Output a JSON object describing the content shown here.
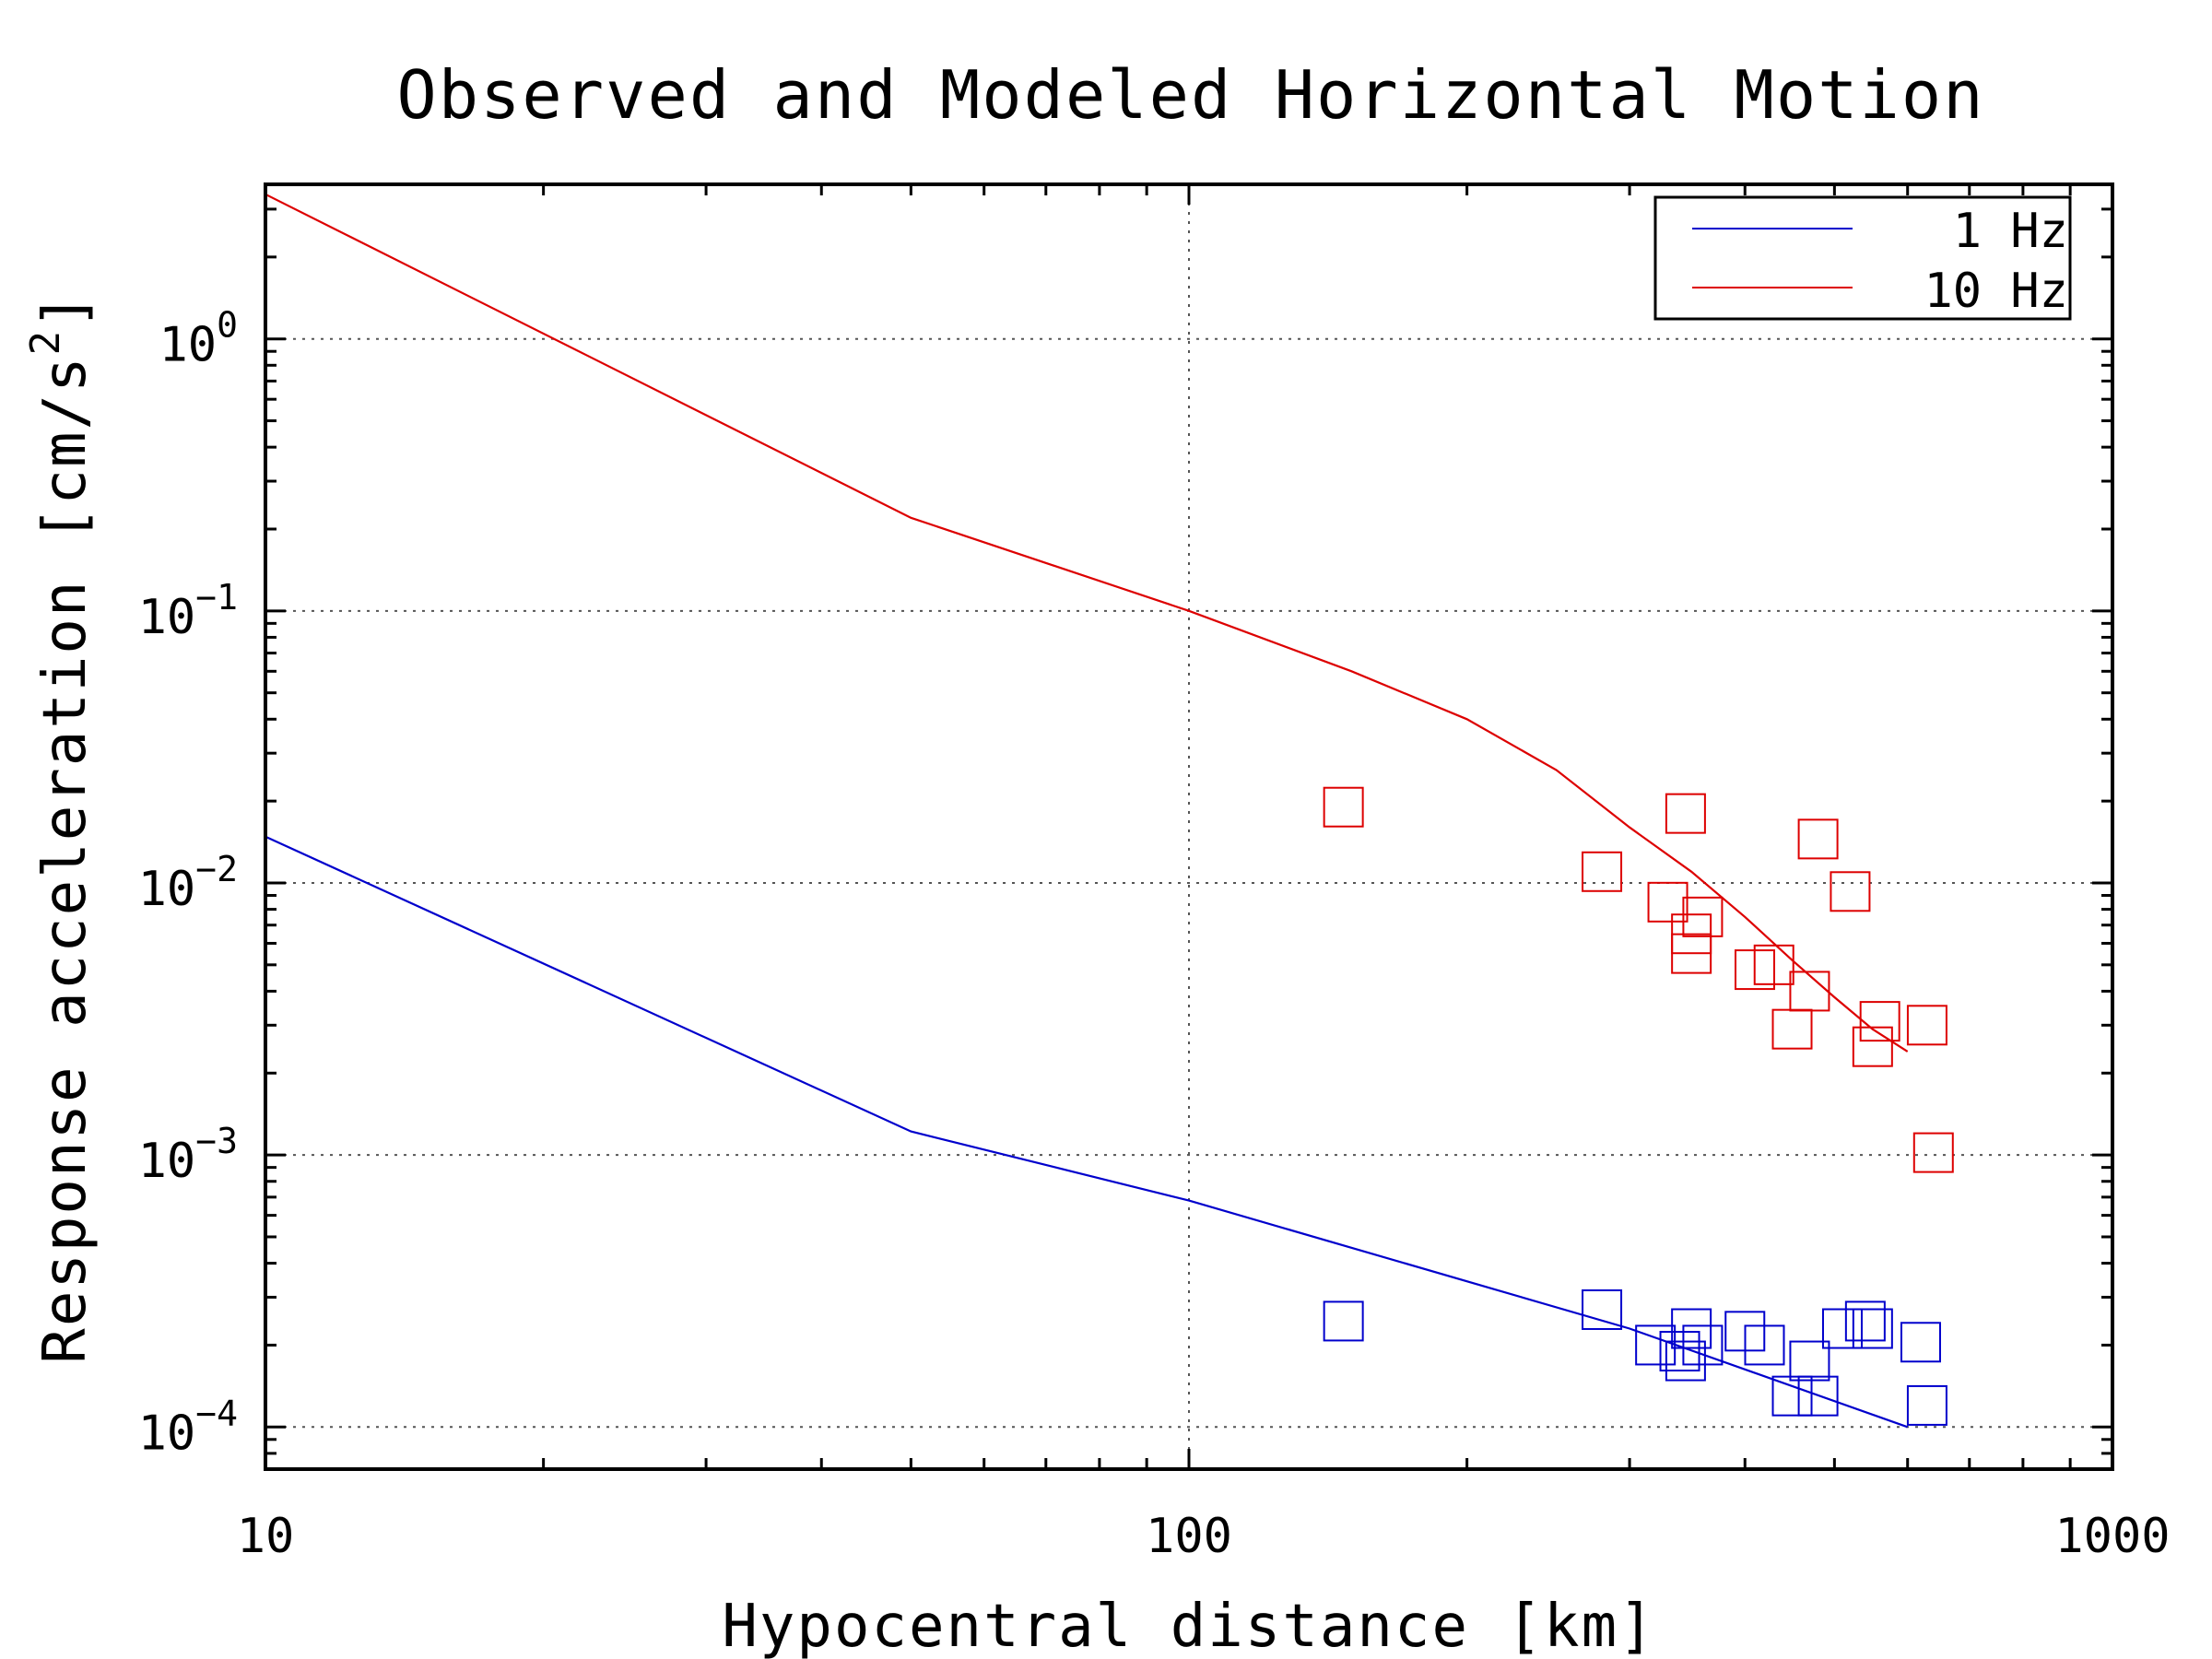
{
  "chart_data": {
    "type": "scatter",
    "title": "Observed and Modeled Horizontal Motion",
    "xlabel": "Hypocentral distance [km]",
    "ylabel": "Response acceleration [cm/s2]",
    "ylabel_text": "Response acceleration [cm/s",
    "ylabel_sup": "2",
    "ylabel_close": "]",
    "x_scale": "log",
    "y_scale": "log",
    "xlim": [
      10,
      1000
    ],
    "ylim": [
      7e-05,
      3.7
    ],
    "grid": true,
    "grid_style": "dotted",
    "legend_position": "top-right",
    "x_ticks": [
      {
        "value": 10,
        "label": "10"
      },
      {
        "value": 100,
        "label": "100"
      },
      {
        "value": 1000,
        "label": "1000"
      }
    ],
    "y_ticks": [
      {
        "value": 1,
        "base": "10",
        "exp": "0"
      },
      {
        "value": 0.1,
        "base": "10",
        "exp": "−1"
      },
      {
        "value": 0.01,
        "base": "10",
        "exp": "−2"
      },
      {
        "value": 0.001,
        "base": "10",
        "exp": "−3"
      },
      {
        "value": 0.0001,
        "base": "10",
        "exp": "−4"
      }
    ],
    "series": [
      {
        "name": "1 Hz",
        "legend_label": "1 Hz",
        "color": "#0000cc",
        "model_line": [
          [
            10,
            0.0148
          ],
          [
            50,
            0.00122
          ],
          [
            100,
            0.00068
          ],
          [
            300,
            0.00023
          ],
          [
            600,
            0.0001
          ]
        ],
        "observed": [
          [
            147,
            0.000245
          ],
          [
            280,
            0.00027
          ],
          [
            320,
            0.0002
          ],
          [
            340,
            0.00019
          ],
          [
            345,
            0.000175
          ],
          [
            350,
            0.00023
          ],
          [
            360,
            0.0002
          ],
          [
            400,
            0.000225
          ],
          [
            420,
            0.0002
          ],
          [
            450,
            0.00013
          ],
          [
            470,
            0.000175
          ],
          [
            480,
            0.00013
          ],
          [
            510,
            0.00023
          ],
          [
            540,
            0.000245
          ],
          [
            550,
            0.00023
          ],
          [
            620,
            0.000205
          ],
          [
            630,
            0.00012
          ]
        ]
      },
      {
        "name": "10 Hz",
        "legend_label": "10 Hz",
        "color": "#dd0000",
        "model_line": [
          [
            10,
            3.4
          ],
          [
            50,
            0.22
          ],
          [
            100,
            0.1
          ],
          [
            150,
            0.06
          ],
          [
            200,
            0.04
          ],
          [
            250,
            0.026
          ],
          [
            300,
            0.016
          ],
          [
            350,
            0.011
          ],
          [
            400,
            0.0075
          ],
          [
            450,
            0.0052
          ],
          [
            500,
            0.0038
          ],
          [
            550,
            0.0029
          ],
          [
            600,
            0.0024
          ]
        ],
        "observed": [
          [
            147,
            0.019
          ],
          [
            280,
            0.011
          ],
          [
            330,
            0.0085
          ],
          [
            345,
            0.018
          ],
          [
            350,
            0.0065
          ],
          [
            350,
            0.0055
          ],
          [
            360,
            0.0075
          ],
          [
            410,
            0.0048
          ],
          [
            430,
            0.005
          ],
          [
            450,
            0.0029
          ],
          [
            470,
            0.004
          ],
          [
            480,
            0.0145
          ],
          [
            520,
            0.0093
          ],
          [
            550,
            0.0025
          ],
          [
            560,
            0.0031
          ],
          [
            630,
            0.003
          ],
          [
            640,
            0.00102
          ]
        ]
      }
    ]
  }
}
